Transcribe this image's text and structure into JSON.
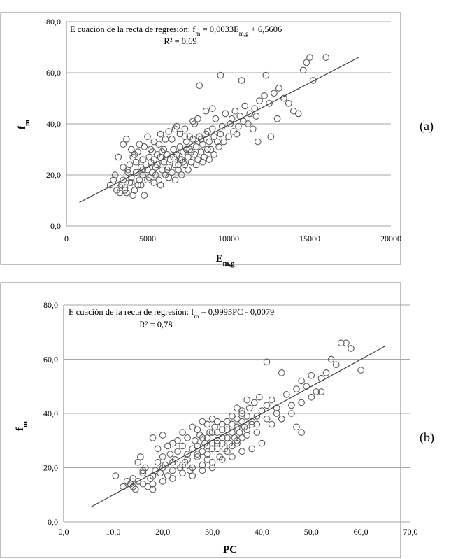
{
  "charts": [
    {
      "panel_label": "(a)",
      "equation_lead": "E cuación de la recta de regresión: f",
      "equation_sub1": "m",
      "equation_mid": " = 0,0033E",
      "equation_sub2": "m,g",
      "equation_tail": " + 6,5606",
      "r2_text": "R² = 0,69",
      "ylabel": "f",
      "ylabel_sub": "m",
      "xlabel": "E",
      "xlabel_sub": "m,g"
    },
    {
      "panel_label": "(b)",
      "equation_lead": "E cuación de la recta de regresión: f",
      "equation_sub1": "m",
      "equation_mid": " = 0,9995PC - 0,0079",
      "equation_sub2": "",
      "equation_tail": "",
      "r2_text": "R² = 0,78",
      "ylabel": "f",
      "ylabel_sub": "m",
      "xlabel": "PC",
      "xlabel_sub": ""
    }
  ],
  "chart_data": [
    {
      "type": "scatter",
      "xlim": [
        0,
        20000
      ],
      "ylim": [
        0,
        80
      ],
      "xticks": [
        "0",
        "5000",
        "10000",
        "15000",
        "20000"
      ],
      "xtick_values": [
        0,
        5000,
        10000,
        15000,
        20000
      ],
      "yticks": [
        "0,0",
        "20,0",
        "40,0",
        "60,0",
        "80,0"
      ],
      "ytick_values": [
        0,
        20,
        40,
        60,
        80
      ],
      "grid": "horizontal",
      "marker_color": "#595959",
      "line_color": "#404040",
      "trendline": {
        "slope": 0.0033,
        "intercept": 6.5606,
        "x_start": 800,
        "x_end": 18000
      },
      "points": [
        [
          2700,
          16
        ],
        [
          2900,
          18
        ],
        [
          3000,
          20
        ],
        [
          3100,
          14
        ],
        [
          3300,
          13
        ],
        [
          3400,
          16
        ],
        [
          3500,
          18
        ],
        [
          3600,
          15
        ],
        [
          3700,
          13
        ],
        [
          3800,
          22
        ],
        [
          3900,
          17
        ],
        [
          4000,
          19
        ],
        [
          4100,
          12
        ],
        [
          4200,
          14
        ],
        [
          4300,
          21
        ],
        [
          4400,
          16
        ],
        [
          4500,
          18
        ],
        [
          4600,
          23
        ],
        [
          4700,
          20
        ],
        [
          4800,
          12
        ],
        [
          4900,
          24
        ],
        [
          5000,
          22
        ],
        [
          5100,
          19
        ],
        [
          5200,
          25
        ],
        [
          5300,
          21
        ],
        [
          5400,
          26
        ],
        [
          5500,
          20
        ],
        [
          5600,
          24
        ],
        [
          5700,
          18
        ],
        [
          5800,
          27
        ],
        [
          5900,
          22
        ],
        [
          6000,
          25
        ],
        [
          6100,
          20
        ],
        [
          6200,
          28
        ],
        [
          6300,
          23
        ],
        [
          6400,
          26
        ],
        [
          6500,
          21
        ],
        [
          6600,
          30
        ],
        [
          6700,
          24
        ],
        [
          6800,
          28
        ],
        [
          6900,
          22
        ],
        [
          7000,
          31
        ],
        [
          7100,
          26
        ],
        [
          7200,
          29
        ],
        [
          7300,
          24
        ],
        [
          7400,
          33
        ],
        [
          7500,
          27
        ],
        [
          7600,
          30
        ],
        [
          7700,
          25
        ],
        [
          7800,
          34
        ],
        [
          7900,
          28
        ],
        [
          8000,
          31
        ],
        [
          8100,
          26
        ],
        [
          8200,
          35
        ],
        [
          8300,
          29
        ],
        [
          8400,
          32
        ],
        [
          8500,
          27
        ],
        [
          8600,
          36
        ],
        [
          8700,
          30
        ],
        [
          8800,
          33
        ],
        [
          3200,
          27
        ],
        [
          3500,
          32
        ],
        [
          3700,
          34
        ],
        [
          4000,
          30
        ],
        [
          4200,
          28
        ],
        [
          4500,
          32
        ],
        [
          4700,
          26
        ],
        [
          5000,
          35
        ],
        [
          5200,
          30
        ],
        [
          5400,
          33
        ],
        [
          5600,
          28
        ],
        [
          5800,
          36
        ],
        [
          6000,
          30
        ],
        [
          6300,
          37
        ],
        [
          6500,
          34
        ],
        [
          6800,
          39
        ],
        [
          7000,
          36
        ],
        [
          7300,
          38
        ],
        [
          7600,
          35
        ],
        [
          7900,
          40
        ],
        [
          3900,
          24
        ],
        [
          4300,
          25
        ],
        [
          4700,
          22
        ],
        [
          5100,
          27
        ],
        [
          5500,
          23
        ],
        [
          5900,
          29
        ],
        [
          6300,
          19
        ],
        [
          6700,
          18
        ],
        [
          7100,
          20
        ],
        [
          7500,
          22
        ],
        [
          8000,
          24
        ],
        [
          8400,
          25
        ],
        [
          8800,
          26
        ],
        [
          9100,
          28
        ],
        [
          9400,
          31
        ],
        [
          9700,
          33
        ],
        [
          10000,
          35
        ],
        [
          10300,
          37
        ],
        [
          10600,
          39
        ],
        [
          10900,
          41
        ],
        [
          9000,
          38
        ],
        [
          9200,
          42
        ],
        [
          9500,
          36
        ],
        [
          9800,
          44
        ],
        [
          10100,
          40
        ],
        [
          10400,
          45
        ],
        [
          10700,
          43
        ],
        [
          11000,
          47
        ],
        [
          11300,
          44
        ],
        [
          11600,
          46
        ],
        [
          11900,
          49
        ],
        [
          12200,
          51
        ],
        [
          12500,
          48
        ],
        [
          12800,
          52
        ],
        [
          13100,
          54
        ],
        [
          13400,
          50
        ],
        [
          13700,
          48
        ],
        [
          14000,
          45
        ],
        [
          14300,
          44
        ],
        [
          14600,
          61
        ],
        [
          14800,
          64
        ],
        [
          15000,
          66
        ],
        [
          15200,
          57
        ],
        [
          16000,
          66
        ],
        [
          13000,
          42
        ],
        [
          12600,
          35
        ],
        [
          11800,
          33
        ],
        [
          12300,
          59
        ],
        [
          9500,
          59
        ],
        [
          8200,
          55
        ],
        [
          10800,
          57
        ],
        [
          8600,
          45
        ],
        [
          9000,
          46
        ],
        [
          11500,
          38
        ],
        [
          9300,
          33
        ],
        [
          8900,
          30
        ],
        [
          7800,
          41
        ],
        [
          8100,
          42
        ],
        [
          6700,
          38
        ],
        [
          7300,
          35
        ],
        [
          3500,
          23
        ],
        [
          3800,
          21
        ],
        [
          4100,
          27
        ],
        [
          4400,
          29
        ],
        [
          4800,
          31
        ],
        [
          5300,
          29
        ],
        [
          5700,
          32
        ],
        [
          6100,
          34
        ],
        [
          6600,
          27
        ],
        [
          7000,
          26
        ],
        [
          7400,
          30
        ],
        [
          7700,
          29
        ],
        [
          8300,
          34
        ],
        [
          8700,
          37
        ],
        [
          9100,
          35
        ],
        [
          9600,
          39
        ],
        [
          10200,
          42
        ],
        [
          10500,
          36
        ],
        [
          11200,
          40
        ],
        [
          11700,
          43
        ],
        [
          3300,
          15
        ],
        [
          3600,
          14
        ],
        [
          4000,
          17
        ],
        [
          4600,
          16
        ],
        [
          5000,
          18
        ],
        [
          5400,
          17
        ],
        [
          5800,
          16
        ],
        [
          6200,
          22
        ],
        [
          6900,
          24
        ],
        [
          7200,
          25
        ]
      ]
    },
    {
      "type": "scatter",
      "xlim": [
        0,
        70
      ],
      "ylim": [
        0,
        80
      ],
      "xticks": [
        "0,0",
        "10,0",
        "20,0",
        "30,0",
        "40,0",
        "50,0",
        "60,0",
        "70,0"
      ],
      "xtick_values": [
        0,
        10,
        20,
        30,
        40,
        50,
        60,
        70
      ],
      "yticks": [
        "0,0",
        "20,0",
        "40,0",
        "60,0",
        "80,0"
      ],
      "ytick_values": [
        0,
        20,
        40,
        60,
        80
      ],
      "grid": "horizontal",
      "marker_color": "#595959",
      "line_color": "#404040",
      "trendline": {
        "slope": 0.9995,
        "intercept": -0.0079,
        "x_start": 5.5,
        "x_end": 65
      },
      "points": [
        [
          10.5,
          17
        ],
        [
          12,
          13
        ],
        [
          12.8,
          15
        ],
        [
          13.5,
          14
        ],
        [
          14,
          16
        ],
        [
          14.5,
          12
        ],
        [
          15,
          22
        ],
        [
          15.5,
          24
        ],
        [
          16,
          18
        ],
        [
          16.5,
          20
        ],
        [
          17,
          13
        ],
        [
          17.5,
          16
        ],
        [
          18,
          14
        ],
        [
          18.5,
          19
        ],
        [
          19,
          22
        ],
        [
          19.5,
          18
        ],
        [
          20,
          24
        ],
        [
          20.5,
          21
        ],
        [
          21,
          17
        ],
        [
          21.5,
          25
        ],
        [
          22,
          19
        ],
        [
          22.5,
          23
        ],
        [
          23,
          26
        ],
        [
          23.5,
          20
        ],
        [
          24,
          28
        ],
        [
          24.5,
          22
        ],
        [
          25,
          25
        ],
        [
          25.5,
          19
        ],
        [
          26,
          27
        ],
        [
          26.5,
          30
        ],
        [
          27,
          24
        ],
        [
          27.5,
          32
        ],
        [
          28,
          26
        ],
        [
          28.5,
          29
        ],
        [
          29,
          23
        ],
        [
          29.5,
          33
        ],
        [
          30,
          27
        ],
        [
          30.5,
          35
        ],
        [
          31,
          30
        ],
        [
          31.5,
          24
        ],
        [
          32,
          31
        ],
        [
          32.5,
          27
        ],
        [
          33,
          34
        ],
        [
          33.5,
          29
        ],
        [
          34,
          36
        ],
        [
          34.5,
          31
        ],
        [
          35,
          38
        ],
        [
          35.5,
          33
        ],
        [
          36,
          40
        ],
        [
          36.5,
          35
        ],
        [
          37,
          32
        ],
        [
          37.5,
          42
        ],
        [
          38,
          37
        ],
        [
          38.5,
          44
        ],
        [
          39,
          39
        ],
        [
          39.5,
          46
        ],
        [
          40,
          41
        ],
        [
          41,
          43
        ],
        [
          42,
          45
        ],
        [
          43,
          40
        ],
        [
          44,
          38
        ],
        [
          45,
          47
        ],
        [
          46,
          43
        ],
        [
          47,
          49
        ],
        [
          48,
          52
        ],
        [
          49,
          50
        ],
        [
          50,
          54
        ],
        [
          51,
          48
        ],
        [
          52,
          53
        ],
        [
          53,
          55
        ],
        [
          54,
          60
        ],
        [
          55,
          58
        ],
        [
          56,
          66
        ],
        [
          57,
          66
        ],
        [
          58,
          64
        ],
        [
          60,
          56
        ],
        [
          41,
          59
        ],
        [
          44,
          55
        ],
        [
          47,
          35
        ],
        [
          48,
          33
        ],
        [
          18,
          31
        ],
        [
          20,
          32
        ],
        [
          22,
          29
        ],
        [
          24,
          33
        ],
        [
          26,
          35
        ],
        [
          28,
          37
        ],
        [
          30,
          38
        ],
        [
          32,
          36
        ],
        [
          34,
          39
        ],
        [
          36,
          41
        ],
        [
          19,
          27
        ],
        [
          21,
          28
        ],
        [
          23,
          30
        ],
        [
          25,
          31
        ],
        [
          27,
          34
        ],
        [
          29,
          36
        ],
        [
          31,
          33
        ],
        [
          33,
          37
        ],
        [
          35,
          42
        ],
        [
          37,
          45
        ],
        [
          16,
          14
        ],
        [
          18,
          12
        ],
        [
          20,
          15
        ],
        [
          22,
          16
        ],
        [
          24,
          18
        ],
        [
          26,
          20
        ],
        [
          28,
          21
        ],
        [
          30,
          22
        ],
        [
          32,
          23
        ],
        [
          34,
          24
        ],
        [
          36,
          26
        ],
        [
          38,
          27
        ],
        [
          40,
          29
        ],
        [
          42,
          36
        ],
        [
          44,
          38
        ],
        [
          46,
          40
        ],
        [
          48,
          44
        ],
        [
          50,
          46
        ],
        [
          52,
          48
        ],
        [
          39,
          33
        ],
        [
          25,
          23
        ],
        [
          27,
          25
        ],
        [
          29,
          28
        ],
        [
          31,
          29
        ],
        [
          33,
          31
        ],
        [
          35,
          30
        ],
        [
          37,
          34
        ],
        [
          39,
          36
        ],
        [
          41,
          38
        ],
        [
          43,
          42
        ],
        [
          26,
          17
        ],
        [
          28,
          19
        ],
        [
          30,
          20
        ],
        [
          24,
          21
        ],
        [
          22,
          22
        ],
        [
          20,
          20
        ],
        [
          18,
          17
        ],
        [
          16,
          19
        ],
        [
          15,
          15
        ],
        [
          14,
          13
        ],
        [
          29,
          31
        ],
        [
          30,
          29
        ],
        [
          31,
          27
        ],
        [
          32,
          29
        ],
        [
          33,
          26
        ],
        [
          34,
          28
        ],
        [
          35,
          35
        ],
        [
          36,
          37
        ],
        [
          37,
          39
        ],
        [
          38,
          36
        ],
        [
          27,
          28
        ],
        [
          28,
          31
        ],
        [
          29,
          25
        ],
        [
          30,
          33
        ],
        [
          31,
          37
        ],
        [
          32,
          34
        ],
        [
          33,
          31
        ],
        [
          34,
          33
        ],
        [
          35,
          29
        ],
        [
          36,
          31
        ]
      ]
    }
  ]
}
